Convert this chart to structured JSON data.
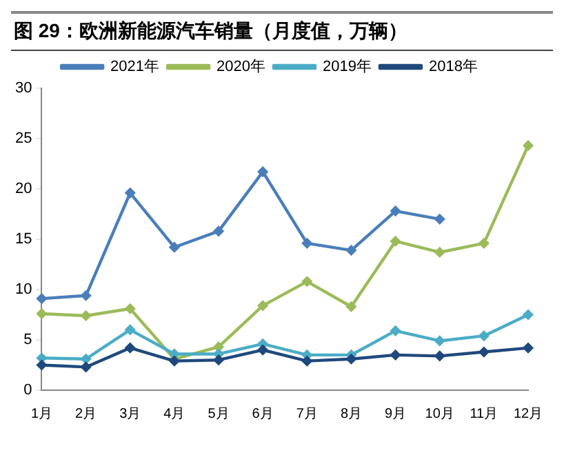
{
  "chart_data": {
    "type": "line",
    "title": "图 29：欧洲新能源汽车销量（月度值，万辆）",
    "categories": [
      "1月",
      "2月",
      "3月",
      "4月",
      "5月",
      "6月",
      "7月",
      "8月",
      "9月",
      "10月",
      "11月",
      "12月"
    ],
    "series": [
      {
        "name": "2021年",
        "color": "#4a7ebb",
        "values": [
          9.1,
          9.4,
          19.6,
          14.2,
          15.8,
          21.7,
          14.6,
          13.9,
          17.8,
          17.0,
          null,
          null
        ]
      },
      {
        "name": "2020年",
        "color": "#9bbb59",
        "values": [
          7.6,
          7.4,
          8.1,
          3.1,
          4.3,
          8.4,
          10.8,
          8.3,
          14.8,
          13.7,
          14.6,
          24.3
        ]
      },
      {
        "name": "2019年",
        "color": "#4bacc6",
        "values": [
          3.2,
          3.1,
          6.0,
          3.6,
          3.6,
          4.6,
          3.5,
          3.5,
          5.9,
          4.9,
          5.4,
          7.5
        ]
      },
      {
        "name": "2018年",
        "color": "#1f497d",
        "values": [
          2.5,
          2.3,
          4.2,
          2.9,
          3.0,
          4.0,
          2.9,
          3.1,
          3.5,
          3.4,
          3.8,
          4.2
        ]
      }
    ],
    "ylim": [
      0,
      30
    ],
    "yticks": [
      0,
      5,
      10,
      15,
      20,
      25,
      30
    ],
    "grid": false,
    "legend": "top",
    "marker": "diamond",
    "line_style": "solid"
  }
}
